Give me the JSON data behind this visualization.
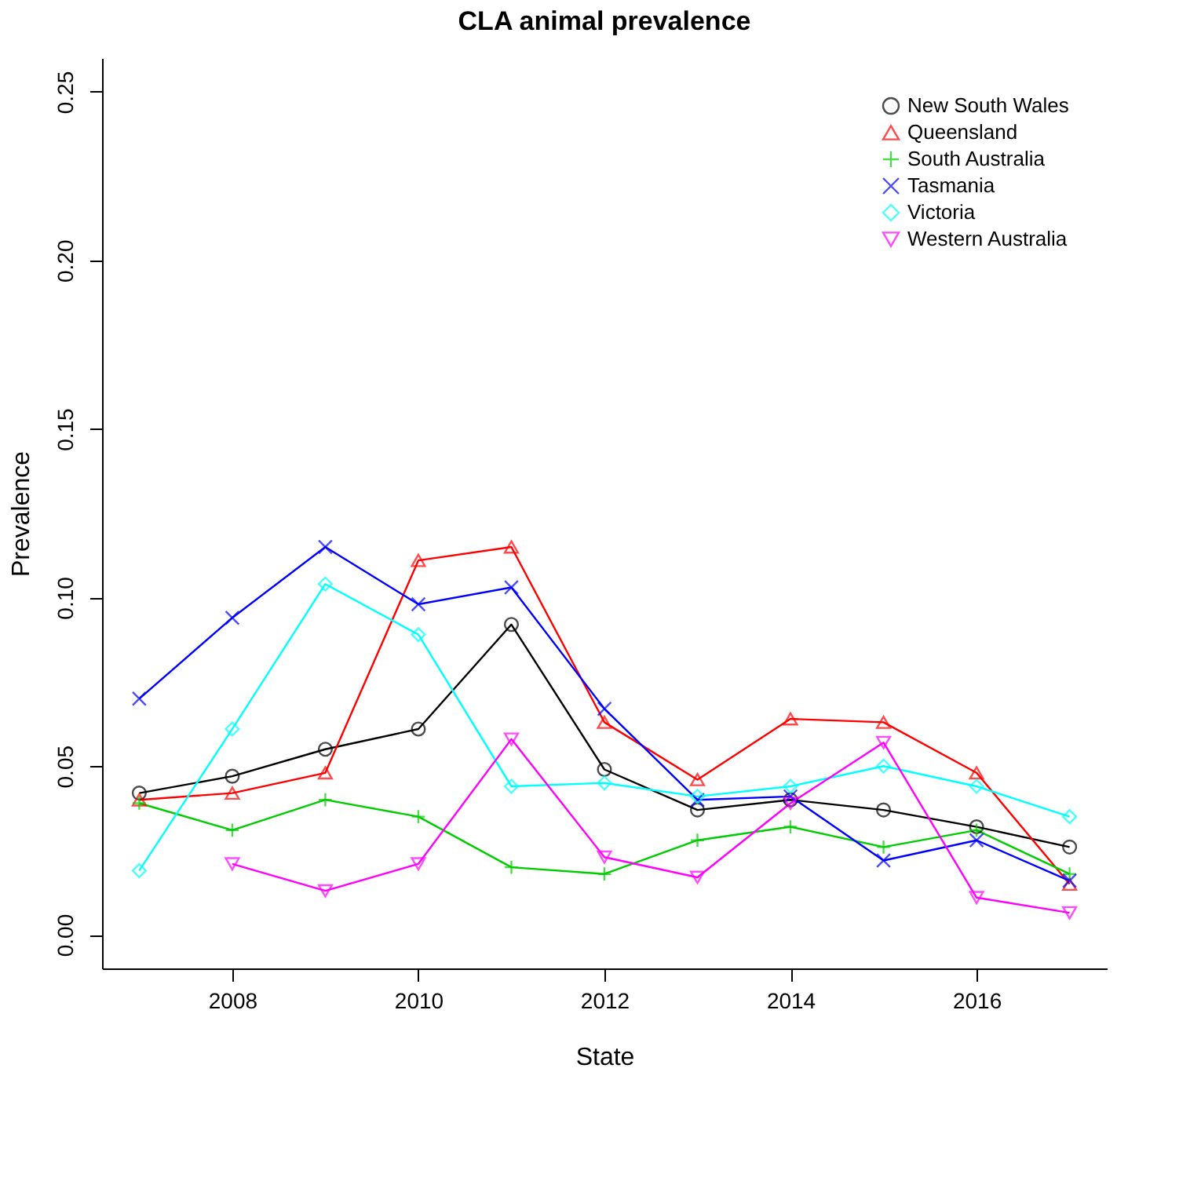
{
  "chart_data": {
    "type": "line",
    "title": "CLA animal prevalence",
    "xlabel": "State",
    "ylabel": "Prevalence",
    "x": [
      2007,
      2008,
      2009,
      2010,
      2011,
      2012,
      2013,
      2014,
      2015,
      2016,
      2017
    ],
    "xlim": [
      2006.6,
      2017.4
    ],
    "xticks": [
      2008,
      2010,
      2012,
      2014,
      2016
    ],
    "ylim": [
      -0.01,
      0.26
    ],
    "yticks": [
      {
        "value": 0,
        "label": "0.00"
      },
      0.05,
      {
        "value": 0.1,
        "label": "0.10"
      },
      0.15,
      {
        "value": 0.2,
        "label": "0.20"
      },
      0.25
    ],
    "grid": false,
    "legend": "top right",
    "line_style": "solid",
    "series": [
      {
        "name": "New South Wales",
        "color": "#000000",
        "marker": "circle",
        "values": [
          0.042,
          0.047,
          0.055,
          0.061,
          0.092,
          0.049,
          0.037,
          0.04,
          0.037,
          0.032,
          0.026
        ]
      },
      {
        "name": "Queensland",
        "color": "#ff0000",
        "marker": "triangle",
        "values": [
          0.04,
          0.042,
          0.048,
          0.111,
          0.115,
          0.063,
          0.046,
          0.064,
          0.063,
          0.048,
          0.015
        ]
      },
      {
        "name": "South Australia",
        "color": "#00cd00",
        "marker": "cross",
        "values": [
          0.039,
          0.031,
          0.04,
          0.035,
          0.02,
          0.018,
          0.028,
          0.032,
          0.026,
          0.031,
          0.018
        ]
      },
      {
        "name": "Tasmania",
        "color": "#0000ff",
        "marker": "x",
        "values": [
          0.07,
          0.094,
          0.115,
          0.098,
          0.103,
          0.067,
          0.04,
          0.041,
          0.022,
          0.028,
          0.016
        ]
      },
      {
        "name": "Victoria",
        "color": "#00ffff",
        "marker": "diamond",
        "values": [
          0.019,
          0.061,
          0.104,
          0.089,
          0.044,
          0.045,
          0.041,
          0.044,
          0.05,
          0.044,
          0.035
        ]
      },
      {
        "name": "Western Australia",
        "color": "#ff00ff",
        "marker": "triangle-down",
        "values": [
          null,
          0.021,
          0.013,
          0.021,
          0.058,
          0.023,
          0.017,
          0.039,
          0.057,
          0.011,
          0.0065
        ]
      }
    ]
  }
}
